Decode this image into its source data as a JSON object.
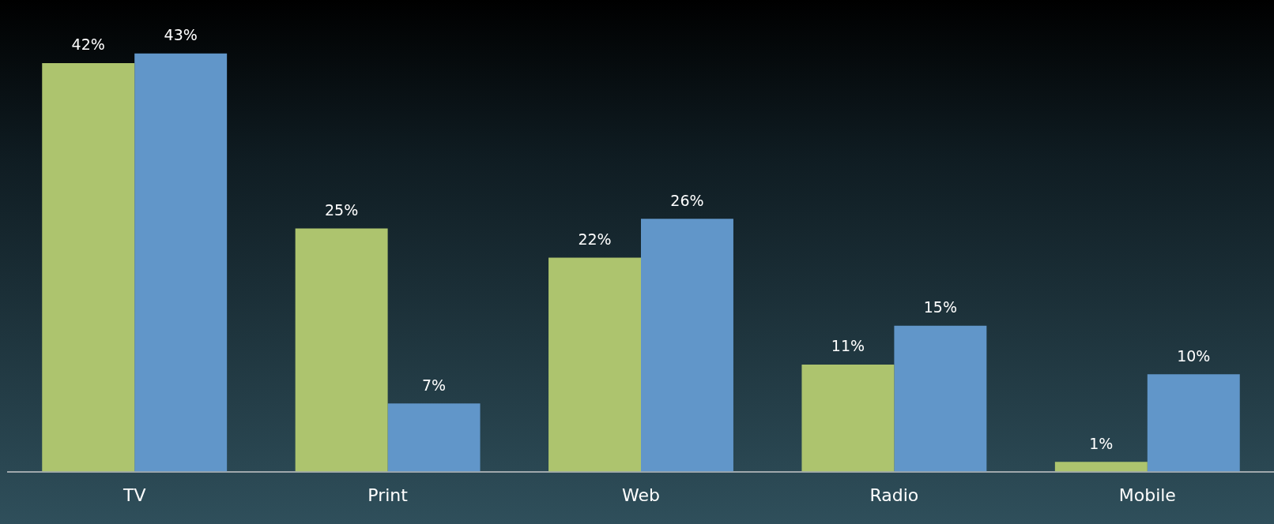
{
  "chart_data": {
    "type": "bar",
    "categories": [
      "TV",
      "Print",
      "Web",
      "Radio",
      "Mobile"
    ],
    "series": [
      {
        "color": "#adc46e",
        "values": [
          42,
          25,
          22,
          11,
          1
        ],
        "value_labels": [
          "42%",
          "25%",
          "22%",
          "11%",
          "1%"
        ]
      },
      {
        "color": "#6196c9",
        "values": [
          43,
          7,
          26,
          15,
          10
        ],
        "value_labels": [
          "43%",
          "7%",
          "26%",
          "15%",
          "10%"
        ]
      }
    ],
    "grid": false,
    "legend": false
  }
}
